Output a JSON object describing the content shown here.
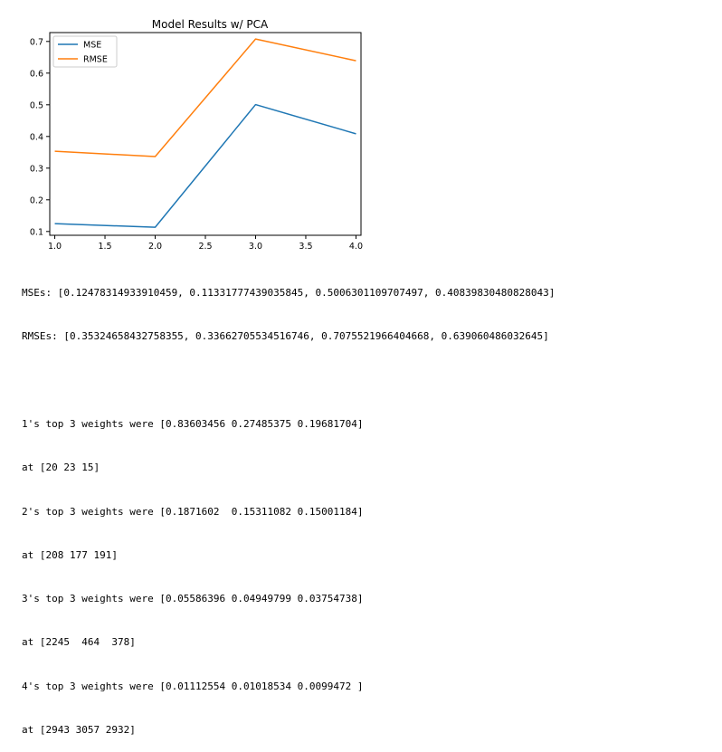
{
  "chart_data": {
    "type": "line",
    "title": "Model Results w/ PCA",
    "xlabel": "",
    "ylabel": "",
    "x": [
      1.0,
      2.0,
      3.0,
      4.0
    ],
    "xlim": [
      0.95,
      4.05
    ],
    "ylim": [
      0.088,
      0.728
    ],
    "xticks": [
      "1.0",
      "1.5",
      "2.0",
      "2.5",
      "3.0",
      "3.5",
      "4.0"
    ],
    "yticks": [
      "0.1",
      "0.2",
      "0.3",
      "0.4",
      "0.5",
      "0.6",
      "0.7"
    ],
    "grid": false,
    "legend_position": "upper left",
    "series": [
      {
        "name": "MSE",
        "color": "#1f77b4",
        "values": [
          0.12478314933910459,
          0.11331777439035845,
          0.5006301109707497,
          0.40839830480828043
        ]
      },
      {
        "name": "RMSE",
        "color": "#ff7f0e",
        "values": [
          0.35324658432758355,
          0.33662705534516746,
          0.7075521966404668,
          0.639060486032645
        ]
      }
    ]
  },
  "output": {
    "mses_line": "MSEs: [0.12478314933910459, 0.11331777439035845, 0.5006301109707497, 0.40839830480828043]",
    "rmses_line": "RMSEs: [0.35324658432758355, 0.33662705534516746, 0.7075521966404668, 0.639060486032645]",
    "weights": [
      {
        "line": "1's top 3 weights were [0.83603456 0.27485375 0.19681704]",
        "at": "at [20 23 15]"
      },
      {
        "line": "2's top 3 weights were [0.1871602  0.15311082 0.15001184]",
        "at": "at [208 177 191]"
      },
      {
        "line": "3's top 3 weights were [0.05586396 0.04949799 0.03754738]",
        "at": "at [2245  464  378]"
      },
      {
        "line": "4's top 3 weights were [0.01112554 0.01018534 0.0099472 ]",
        "at": "at [2943 3057 2932]"
      }
    ]
  }
}
